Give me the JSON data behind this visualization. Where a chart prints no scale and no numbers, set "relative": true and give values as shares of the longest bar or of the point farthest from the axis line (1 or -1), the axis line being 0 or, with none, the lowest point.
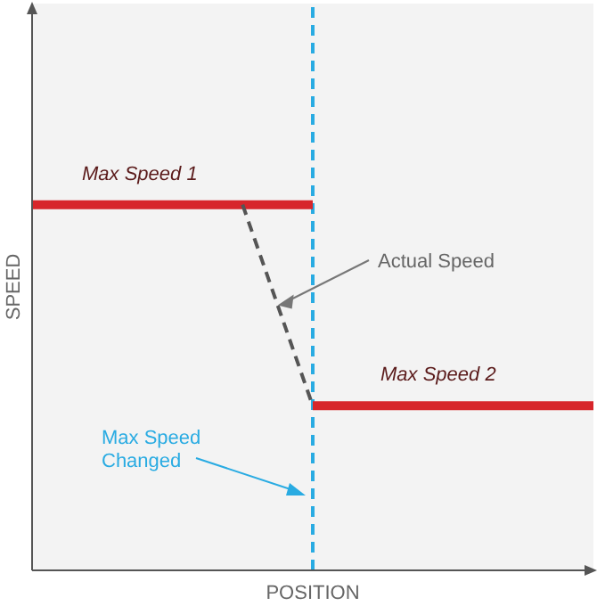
{
  "chart_data": {
    "type": "line",
    "relative": true,
    "xlabel": "POSITION",
    "ylabel": "SPEED",
    "marker": "none",
    "categories": [
      null,
      null,
      null,
      null,
      null,
      null,
      null,
      null,
      null
    ],
    "series": [
      {
        "name": "Max Speed 1",
        "color": "#d7262b",
        "values": [
          1,
          1,
          1,
          1,
          1,
          null,
          null,
          null,
          null
        ],
        "line_style": "solid"
      },
      {
        "name": "Max Speed 2",
        "color": "#d7262b",
        "values": [
          null,
          null,
          null,
          null,
          0.45,
          0.45,
          0.45,
          0.45,
          0.45
        ],
        "line_style": "solid"
      },
      {
        "name": "Actual Speed",
        "color": "#555555",
        "values": [
          null,
          null,
          null,
          1,
          0.45,
          null,
          null,
          null,
          null
        ],
        "line_style": "dashed"
      }
    ],
    "ref_lines": [
      {
        "axis": "x",
        "label": "Max Speed Changed",
        "color": "#29abe2",
        "line_style": "dashed"
      }
    ]
  }
}
